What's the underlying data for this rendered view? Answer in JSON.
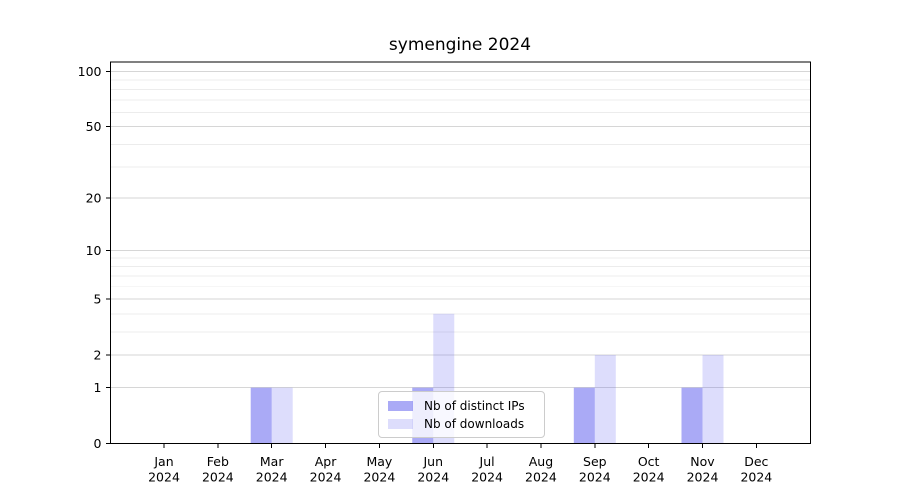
{
  "chart_data": {
    "type": "bar",
    "title": "symengine 2024",
    "categories": [
      "Jan",
      "Feb",
      "Mar",
      "Apr",
      "May",
      "Jun",
      "Jul",
      "Aug",
      "Sep",
      "Oct",
      "Nov",
      "Dec"
    ],
    "x_tick_second_line": "2024",
    "series": [
      {
        "name": "Nb of distinct IPs",
        "color": "rgba(85,85,238,0.5)",
        "values": [
          0,
          0,
          1,
          0,
          0,
          1,
          0,
          0,
          1,
          0,
          1,
          0
        ]
      },
      {
        "name": "Nb of downloads",
        "color": "rgba(85,85,238,0.2)",
        "values": [
          0,
          0,
          1,
          0,
          0,
          4,
          0,
          0,
          2,
          0,
          2,
          0
        ]
      }
    ],
    "y_axis": {
      "scale": "log1p",
      "ticks": [
        0,
        1,
        2,
        5,
        10,
        20,
        50,
        100
      ],
      "minor_ticks": [
        3,
        4,
        6,
        7,
        8,
        9,
        30,
        40,
        60,
        70,
        80,
        90
      ],
      "ylim": [
        0,
        113
      ]
    },
    "xlabel": "",
    "ylabel": "",
    "grid": true,
    "legend_position": "lower center",
    "colors": {
      "grid_major": "#d6d6d6",
      "grid_minor": "#ececec",
      "axis": "#000000",
      "text": "#000000",
      "background": "#ffffff"
    }
  }
}
